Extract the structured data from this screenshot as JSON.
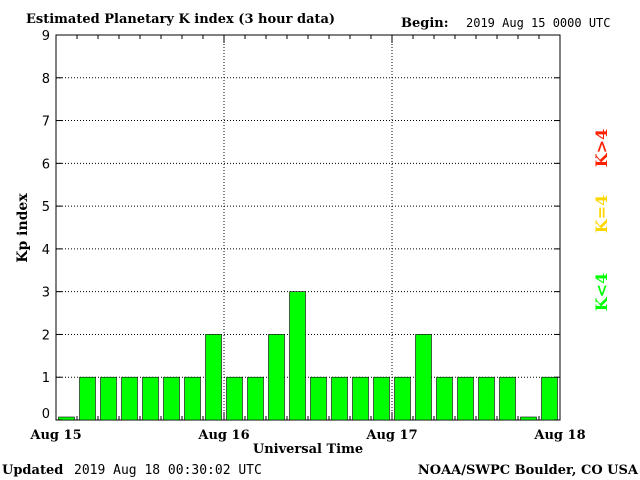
{
  "header": {
    "title": "Estimated Planetary K index (3 hour data)",
    "begin_label": "Begin:",
    "begin_value": "2019 Aug 15 0000 UTC"
  },
  "footer": {
    "updated_label": "Updated",
    "updated_value": "2019 Aug 18 00:30:02 UTC",
    "source": "NOAA/SWPC Boulder, CO USA"
  },
  "legend": {
    "low": "K<4",
    "mid": "K=4",
    "high": "K>4",
    "colors": {
      "low": "#00ff00",
      "mid": "#ffd700",
      "high": "#ff2000"
    }
  },
  "chart_data": {
    "type": "bar",
    "title": "Estimated Planetary K index (3 hour data)",
    "xlabel": "Universal Time",
    "ylabel": "Kp index",
    "ylim": [
      0,
      9
    ],
    "yticks": [
      "0",
      "1",
      "2",
      "3",
      "4",
      "5",
      "6",
      "7",
      "8",
      "9"
    ],
    "xtick_labels": [
      "Aug 15",
      "Aug 16",
      "Aug 17",
      "Aug 18"
    ],
    "interval_hours": 3,
    "values": [
      0,
      1,
      1,
      1,
      1,
      1,
      1,
      2,
      1,
      1,
      2,
      3,
      1,
      1,
      1,
      1,
      1,
      2,
      1,
      1,
      1,
      1,
      0,
      1
    ],
    "bar_color": "#00ff00",
    "grid": true
  }
}
